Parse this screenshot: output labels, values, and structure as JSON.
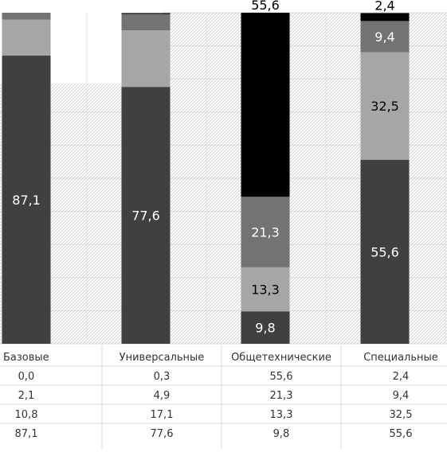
{
  "chart_data": {
    "type": "bar",
    "stacked": true,
    "categories": [
      "Базовые",
      "Универсальные",
      "Общетехнические",
      "Специальные"
    ],
    "series": [
      {
        "values": [
          87.1,
          77.6,
          9.8,
          55.6
        ],
        "labels": [
          "87,1",
          "77,6",
          "9,8",
          "55,6"
        ],
        "color": "#404040"
      },
      {
        "values": [
          10.8,
          17.1,
          13.3,
          32.5
        ],
        "labels": [
          "10,8",
          "17,1",
          "13,3",
          "32,5"
        ],
        "color": "#a6a6a6"
      },
      {
        "values": [
          2.1,
          4.9,
          21.3,
          9.4
        ],
        "labels": [
          "2,1",
          "4,9",
          "21,3",
          "9,4"
        ],
        "color": "#737373"
      },
      {
        "values": [
          0.0,
          0.3,
          55.6,
          2.4
        ],
        "labels": [
          "0,0",
          "0,3",
          "55,6",
          "2,4"
        ],
        "color": "#000000"
      }
    ],
    "data_labels_shown": [
      [
        true,
        true,
        true,
        true
      ],
      [
        false,
        false,
        true,
        true
      ],
      [
        false,
        false,
        true,
        true
      ],
      [
        false,
        false,
        true,
        true
      ]
    ],
    "table_rows": [
      [
        "0,0",
        "0,3",
        "55,6",
        "2,4"
      ],
      [
        "2,1",
        "4,9",
        "21,3",
        "9,4"
      ],
      [
        "10,8",
        "17,1",
        "13,3",
        "32,5"
      ],
      [
        "87,1",
        "77,6",
        "9,8",
        "55,6"
      ]
    ],
    "grid": true,
    "legend": "none"
  }
}
